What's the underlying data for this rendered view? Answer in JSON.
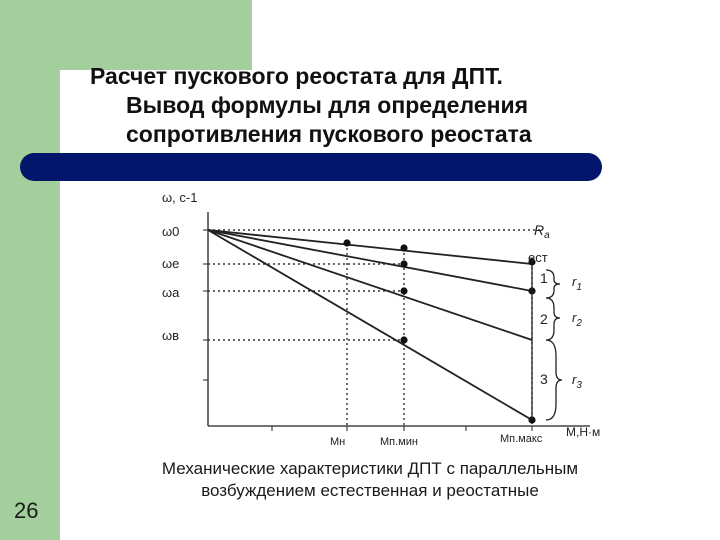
{
  "slide": {
    "title_line1": "Расчет пускового реостата для ДПТ.",
    "title_line2": "Вывод формулы для определения",
    "title_line3": "сопротивления пускового реостата",
    "number": "26",
    "caption_line1": "Механические характеристики ДПТ с параллельным",
    "caption_line2": "возбуждением естественная и реостатные"
  },
  "colors": {
    "green": "#a3cf9c",
    "bar": "#03166c"
  },
  "chart_data": {
    "type": "line",
    "ylabel": "ω, с-1",
    "xlabel": "М,Н·м",
    "y_markers": [
      "ω0",
      "ωе",
      "ωа",
      "ωв"
    ],
    "x_markers": [
      "Мн",
      "Мп.мин",
      "Мп.макс"
    ],
    "series": [
      {
        "name": "Rа ест",
        "y_end": "ωе"
      },
      {
        "name": "1",
        "y_end": "ωа"
      },
      {
        "name": "2",
        "y_end": "ωв"
      },
      {
        "name": "3",
        "y_end": "0"
      }
    ],
    "resistances": [
      "r1",
      "r2",
      "r3"
    ]
  }
}
